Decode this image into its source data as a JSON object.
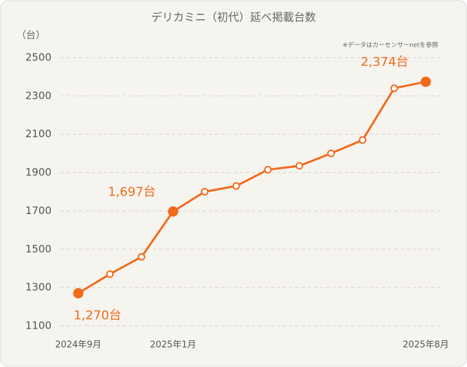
{
  "chart_data": {
    "type": "line",
    "title": "デリカミニ（初代）延べ掲載台数",
    "y_label": "（台）",
    "note": "※データはカーセンサーnetを参照",
    "categories": [
      "2024年9月",
      null,
      null,
      "2025年1月",
      null,
      null,
      null,
      null,
      null,
      null,
      null,
      "2025年8月"
    ],
    "series": [
      {
        "name": "延べ掲載台数",
        "color": "#f26a1b",
        "values": [
          1270,
          1370,
          1460,
          1697,
          1800,
          1830,
          1915,
          1935,
          2000,
          2070,
          2340,
          2374
        ],
        "value_labels": [
          "1,270台",
          null,
          null,
          "1,697台",
          null,
          null,
          null,
          null,
          null,
          null,
          null,
          "2,374台"
        ]
      }
    ],
    "ylim": [
      1100,
      2500
    ],
    "yticks": [
      1100,
      1300,
      1500,
      1700,
      1900,
      2100,
      2300,
      2500
    ],
    "grid": true
  }
}
